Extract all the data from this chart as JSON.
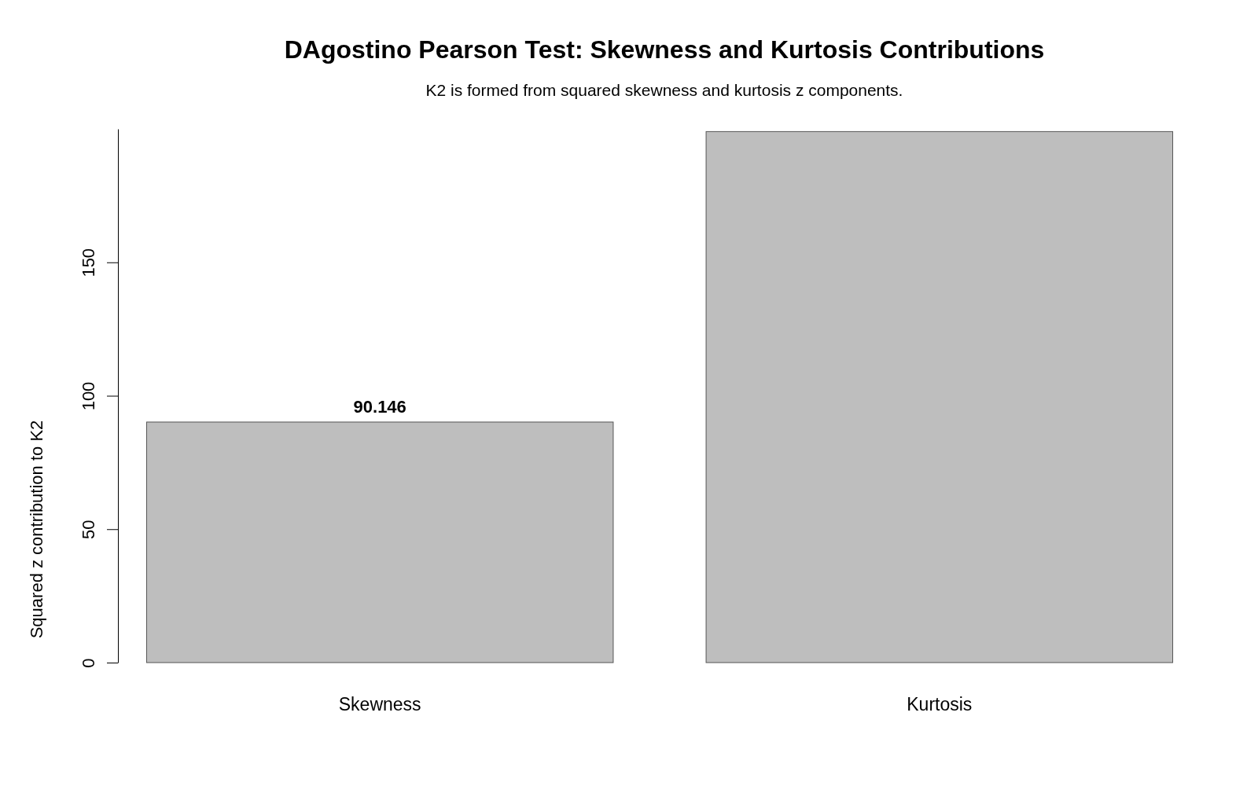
{
  "chart_data": {
    "type": "bar",
    "title": "DAgostino Pearson Test: Skewness and Kurtosis Contributions",
    "subtitle": "K2 is formed from squared skewness and kurtosis z components.",
    "ylabel": "Squared z contribution to K2",
    "categories": [
      "Skewness",
      "Kurtosis"
    ],
    "values": [
      90.146,
      199
    ],
    "value_labels": [
      "90.146",
      null
    ],
    "color": "#bebebe",
    "ylim": [
      0,
      200
    ],
    "yticks": [
      0,
      50,
      100,
      150
    ],
    "grid": false
  }
}
